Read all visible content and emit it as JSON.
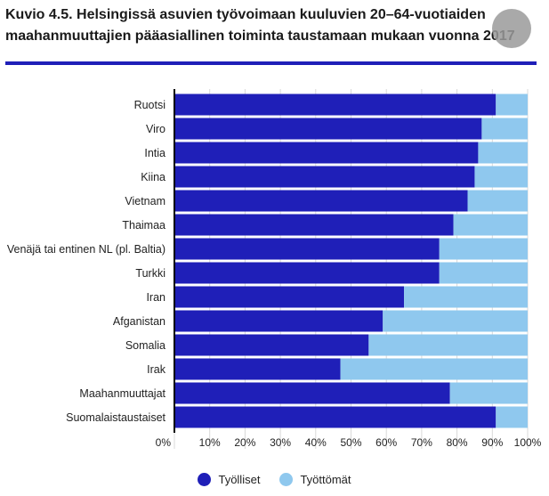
{
  "title_lines": [
    "Kuvio 4.5. Helsingissä asuvien työvoimaan kuuluvien 20–64-vuotiaiden",
    "maahanmuuttajien pääasiallinen toiminta taustamaan mukaan vuonna 2017"
  ],
  "colors": {
    "accent_rule": "#1f1fb8",
    "employed": "#1f1fb8",
    "unemployed": "#8fc8ee",
    "grid": "#d9d9d9",
    "axis": "#000000"
  },
  "chart_data": {
    "type": "bar",
    "orientation": "horizontal",
    "stacked": true,
    "categories": [
      "Ruotsi",
      "Viro",
      "Intia",
      "Kiina",
      "Vietnam",
      "Thaimaa",
      "Venäjä tai entinen NL (pl. Baltia)",
      "Turkki",
      "Iran",
      "Afganistan",
      "Somalia",
      "Irak",
      "Maahanmuuttajat",
      "Suomalaistaustaiset"
    ],
    "series": [
      {
        "name": "Työlliset",
        "values": [
          91,
          87,
          86,
          85,
          83,
          79,
          75,
          75,
          65,
          59,
          55,
          47,
          78,
          91
        ]
      },
      {
        "name": "Työttömät",
        "values": [
          9,
          13,
          14,
          15,
          17,
          21,
          25,
          25,
          35,
          41,
          45,
          53,
          22,
          9
        ]
      }
    ],
    "xlim": [
      0,
      100
    ],
    "xticks": [
      "0%",
      "10%",
      "20%",
      "30%",
      "40%",
      "50%",
      "60%",
      "70%",
      "80%",
      "90%",
      "100%"
    ],
    "grid": true,
    "legend_position": "bottom-center"
  }
}
